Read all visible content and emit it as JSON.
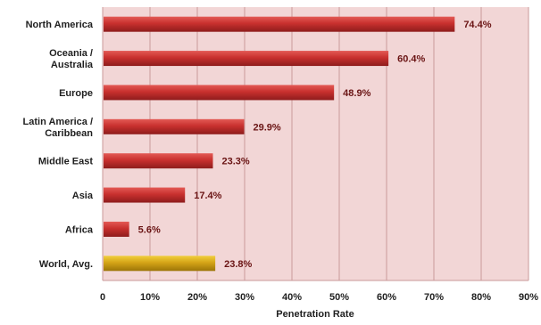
{
  "chart_data": {
    "type": "bar",
    "orientation": "horizontal",
    "title": "",
    "xlabel": "Penetration Rate",
    "ylabel": "",
    "xlim": [
      0,
      90
    ],
    "grid": true,
    "legend": "none",
    "x_tick_values": [
      0,
      10,
      20,
      30,
      40,
      50,
      60,
      70,
      80,
      90
    ],
    "x_tick_labels": [
      "0",
      "10%",
      "20%",
      "30%",
      "40%",
      "50%",
      "60%",
      "70%",
      "80%",
      "90%"
    ],
    "categories": [
      "North America",
      "Oceania  /\nAustralia",
      "Europe",
      "Latin America /\nCaribbean",
      "Middle East",
      "Asia",
      "Africa",
      "World, Avg."
    ],
    "values": [
      74.4,
      60.4,
      48.9,
      29.9,
      23.3,
      17.4,
      5.6,
      23.8
    ],
    "value_labels": [
      "74.4%",
      "60.4%",
      "48.9%",
      "29.9%",
      "23.3%",
      "17.4%",
      "5.6%",
      "23.8%"
    ],
    "highlight_index": 7,
    "colors": {
      "plot_background": "#f2d6d6",
      "grid": "#c99a9a",
      "bar": "#c8302e",
      "bar_highlight": "#d4a417",
      "value_text": "#6a1414"
    }
  }
}
